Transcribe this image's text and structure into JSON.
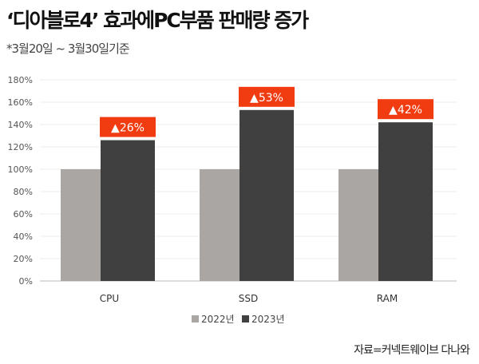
{
  "title": "‘디아블로4’ 효과에PC부품 판매량 증가",
  "subtitle": "*3월20일 ~ 3월30일기준",
  "source": "자료=커넥트웨이브 다나와",
  "chart_data": {
    "type": "bar",
    "categories": [
      "CPU",
      "SSD",
      "RAM"
    ],
    "series": [
      {
        "name": "2022년",
        "values": [
          100,
          100,
          100
        ],
        "color": "#aaa6a4"
      },
      {
        "name": "2023년",
        "values": [
          126,
          153,
          142
        ],
        "color": "#404040"
      }
    ],
    "annotations": [
      "▲26%",
      "▲53%",
      "▲42%"
    ],
    "annotation_color": "#f03c10",
    "yticks": [
      "0%",
      "20%",
      "40%",
      "60%",
      "80%",
      "100%",
      "120%",
      "140%",
      "160%",
      "180%"
    ],
    "ylim": [
      0,
      180
    ],
    "grid": true,
    "legend": "bottom"
  }
}
